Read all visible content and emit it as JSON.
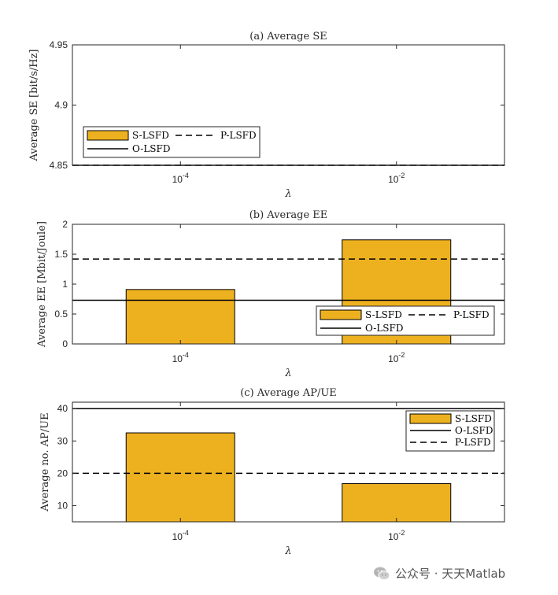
{
  "colors": {
    "bar": "#EDB120",
    "axis": "#262626",
    "line": "#000000"
  },
  "chart_data": [
    {
      "type": "bar",
      "title": "(a) Average SE",
      "xlabel": "λ",
      "ylabel": "Average SE [bit/s/Hz]",
      "categories": [
        "10^-4",
        "10^-2"
      ],
      "category_labels": [
        {
          "base": "10",
          "exp": "-4"
        },
        {
          "base": "10",
          "exp": "-2"
        }
      ],
      "ylim": [
        4.85,
        4.95
      ],
      "yticks": [
        4.85,
        4.9,
        4.95
      ],
      "ytick_labels": [
        "4.85",
        "4.9",
        "4.95"
      ],
      "series": [
        {
          "name": "S-LSFD",
          "style": "bar",
          "values": [
            4.85,
            4.85
          ]
        },
        {
          "name": "P-LSFD",
          "style": "dashed",
          "value": 4.85
        },
        {
          "name": "O-LSFD",
          "style": "solid",
          "value": 4.85
        }
      ],
      "legend": {
        "location": "bottom-left",
        "columns": 2,
        "order": [
          "S-LSFD",
          "P-LSFD",
          "O-LSFD"
        ]
      }
    },
    {
      "type": "bar",
      "title": "(b) Average EE",
      "xlabel": "λ",
      "ylabel": "Average EE [Mbit/Joule]",
      "categories": [
        "10^-4",
        "10^-2"
      ],
      "category_labels": [
        {
          "base": "10",
          "exp": "-4"
        },
        {
          "base": "10",
          "exp": "-2"
        }
      ],
      "ylim": [
        0,
        2
      ],
      "yticks": [
        0,
        0.5,
        1,
        1.5,
        2
      ],
      "ytick_labels": [
        "0",
        "0.5",
        "1",
        "1.5",
        "2"
      ],
      "series": [
        {
          "name": "S-LSFD",
          "style": "bar",
          "values": [
            0.91,
            1.74
          ]
        },
        {
          "name": "P-LSFD",
          "style": "dashed",
          "value": 1.42
        },
        {
          "name": "O-LSFD",
          "style": "solid",
          "value": 0.73
        }
      ],
      "legend": {
        "location": "bottom-right",
        "columns": 2,
        "order": [
          "S-LSFD",
          "P-LSFD",
          "O-LSFD"
        ]
      }
    },
    {
      "type": "bar",
      "title": "(c) Average AP/UE",
      "xlabel": "λ",
      "ylabel": "Average no. AP/UE",
      "categories": [
        "10^-4",
        "10^-2"
      ],
      "category_labels": [
        {
          "base": "10",
          "exp": "-4"
        },
        {
          "base": "10",
          "exp": "-2"
        }
      ],
      "ylim": [
        5,
        42
      ],
      "yticks": [
        10,
        20,
        30,
        40
      ],
      "ytick_labels": [
        "10",
        "20",
        "30",
        "40"
      ],
      "series": [
        {
          "name": "S-LSFD",
          "style": "bar",
          "values": [
            32.5,
            16.8
          ]
        },
        {
          "name": "O-LSFD",
          "style": "solid",
          "value": 40
        },
        {
          "name": "P-LSFD",
          "style": "dashed",
          "value": 20
        }
      ],
      "legend": {
        "location": "top-right",
        "columns": 1,
        "order": [
          "S-LSFD",
          "O-LSFD",
          "P-LSFD"
        ]
      }
    }
  ],
  "watermark": {
    "text": "公众号 · 天天Matlab",
    "icon": "wechat-icon"
  }
}
